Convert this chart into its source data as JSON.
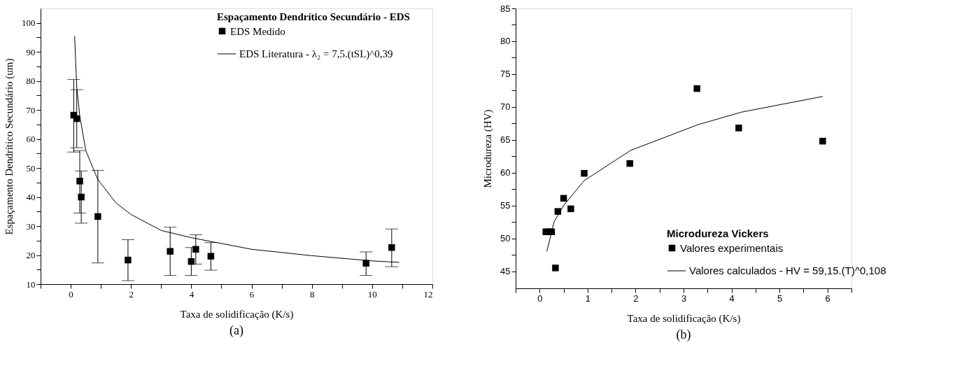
{
  "chart_data": [
    {
      "type": "scatter",
      "xlabel": "Taxa de solidificação (K/s)",
      "ylabel": "Espaçamento Dendrítico Secundário (um)",
      "legend_title": "Espaçamento Dendrítico Secundário - EDS",
      "annotations": [
        "(a)"
      ],
      "xlim": [
        -1,
        12
      ],
      "ylim": [
        10,
        105
      ],
      "xticks": [
        0,
        2,
        4,
        6,
        8,
        10,
        12,
        {
          "value": -1,
          "label": null
        },
        {
          "value": 1,
          "label": null
        },
        {
          "value": 3,
          "label": null
        },
        {
          "value": 5,
          "label": null
        },
        {
          "value": 7,
          "label": null
        },
        {
          "value": 9,
          "label": null
        },
        {
          "value": 11,
          "label": null
        }
      ],
      "yticks": [
        10,
        20,
        30,
        40,
        50,
        60,
        70,
        80,
        90,
        100,
        {
          "value": 15,
          "label": null
        },
        {
          "value": 25,
          "label": null
        },
        {
          "value": 35,
          "label": null
        },
        {
          "value": 45,
          "label": null
        },
        {
          "value": 55,
          "label": null
        },
        {
          "value": 65,
          "label": null
        },
        {
          "value": 75,
          "label": null
        },
        {
          "value": 85,
          "label": null
        },
        {
          "value": 95,
          "label": null
        }
      ],
      "grid": false,
      "legend": "top right",
      "marker": "square",
      "series": [
        {
          "name": "EDS Medido",
          "color": "#000000",
          "x": [
            0.1,
            0.2,
            0.3,
            0.35,
            0.9,
            1.9,
            3.3,
            4.0,
            4.15,
            4.65,
            9.8,
            10.65
          ],
          "values": [
            68.2,
            67,
            45.5,
            40,
            33.3,
            18.3,
            21.3,
            17.8,
            22,
            19.6,
            17.2,
            22.6
          ],
          "errors": [
            [
              55.5,
              80.5
            ],
            [
              57,
              77
            ],
            [
              34.5,
              56
            ],
            [
              31,
              49
            ],
            [
              17.3,
              49.2
            ],
            [
              11.2,
              25.3
            ],
            [
              13,
              29.6
            ],
            [
              13,
              22.6
            ],
            [
              16.9,
              27
            ],
            [
              14.8,
              24.3
            ],
            [
              13,
              21.1
            ],
            [
              16,
              29
            ]
          ]
        },
        {
          "name": "EDS Literatura - λ₂ = 7,5.(tSL)^0,39",
          "type": "line",
          "color": "#000000",
          "line_style": "solid",
          "marker": "none",
          "x": [
            0.13,
            0.2,
            0.3,
            0.5,
            0.9,
            1.5,
            2,
            3,
            4,
            5,
            6,
            8,
            10,
            10.9
          ],
          "values": [
            95.5,
            78,
            68,
            56,
            46,
            38,
            34,
            28.5,
            26,
            24,
            22,
            19.8,
            18,
            17.5
          ]
        }
      ]
    },
    {
      "type": "scatter",
      "xlabel": "Taxa de solidificação (K/s)",
      "ylabel": "Microdureza (HV)",
      "legend_title": "Microdureza Vickers",
      "annotations": [
        "(b)"
      ],
      "xlim": [
        -0.5,
        6.5
      ],
      "ylim": [
        42.4,
        85
      ],
      "xticks": [
        0,
        1,
        2,
        3,
        4,
        5,
        6,
        {
          "value": -0.5,
          "label": null
        },
        {
          "value": 0.5,
          "label": null
        },
        {
          "value": 1.5,
          "label": null
        },
        {
          "value": 2.5,
          "label": null
        },
        {
          "value": 3.5,
          "label": null
        },
        {
          "value": 4.5,
          "label": null
        },
        {
          "value": 5.5,
          "label": null
        },
        {
          "value": 6.5,
          "label": null
        }
      ],
      "yticks": [
        45,
        50,
        55,
        60,
        65,
        70,
        75,
        80,
        85,
        {
          "value": 47.5,
          "label": null
        },
        {
          "value": 52.5,
          "label": null
        },
        {
          "value": 57.5,
          "label": null
        },
        {
          "value": 62.5,
          "label": null
        },
        {
          "value": 67.5,
          "label": null
        },
        {
          "value": 72.5,
          "label": null
        },
        {
          "value": 77.5,
          "label": null
        },
        {
          "value": 82.5,
          "label": null
        }
      ],
      "grid": false,
      "legend": "bottom right",
      "marker": "square",
      "series": [
        {
          "name": "Valores experimentais",
          "color": "#000000",
          "x": [
            0.13,
            0.2,
            0.25,
            0.33,
            0.38,
            0.5,
            0.65,
            0.93,
            1.88,
            3.28,
            4.15,
            5.9
          ],
          "values": [
            51,
            51,
            51,
            45.5,
            54.1,
            56.1,
            54.5,
            59.9,
            61.4,
            72.8,
            66.8,
            64.8
          ]
        },
        {
          "name": "Valores calculados - HV = 59,15.(T)^0,108",
          "type": "line",
          "color": "#000000",
          "line_style": "solid",
          "marker": "none",
          "x": [
            0.15,
            0.3,
            0.5,
            0.93,
            1.9,
            3.3,
            4.2,
            5.9
          ],
          "values": [
            48,
            52.5,
            55,
            58.8,
            63.4,
            67.3,
            69.2,
            71.6
          ]
        }
      ]
    }
  ]
}
